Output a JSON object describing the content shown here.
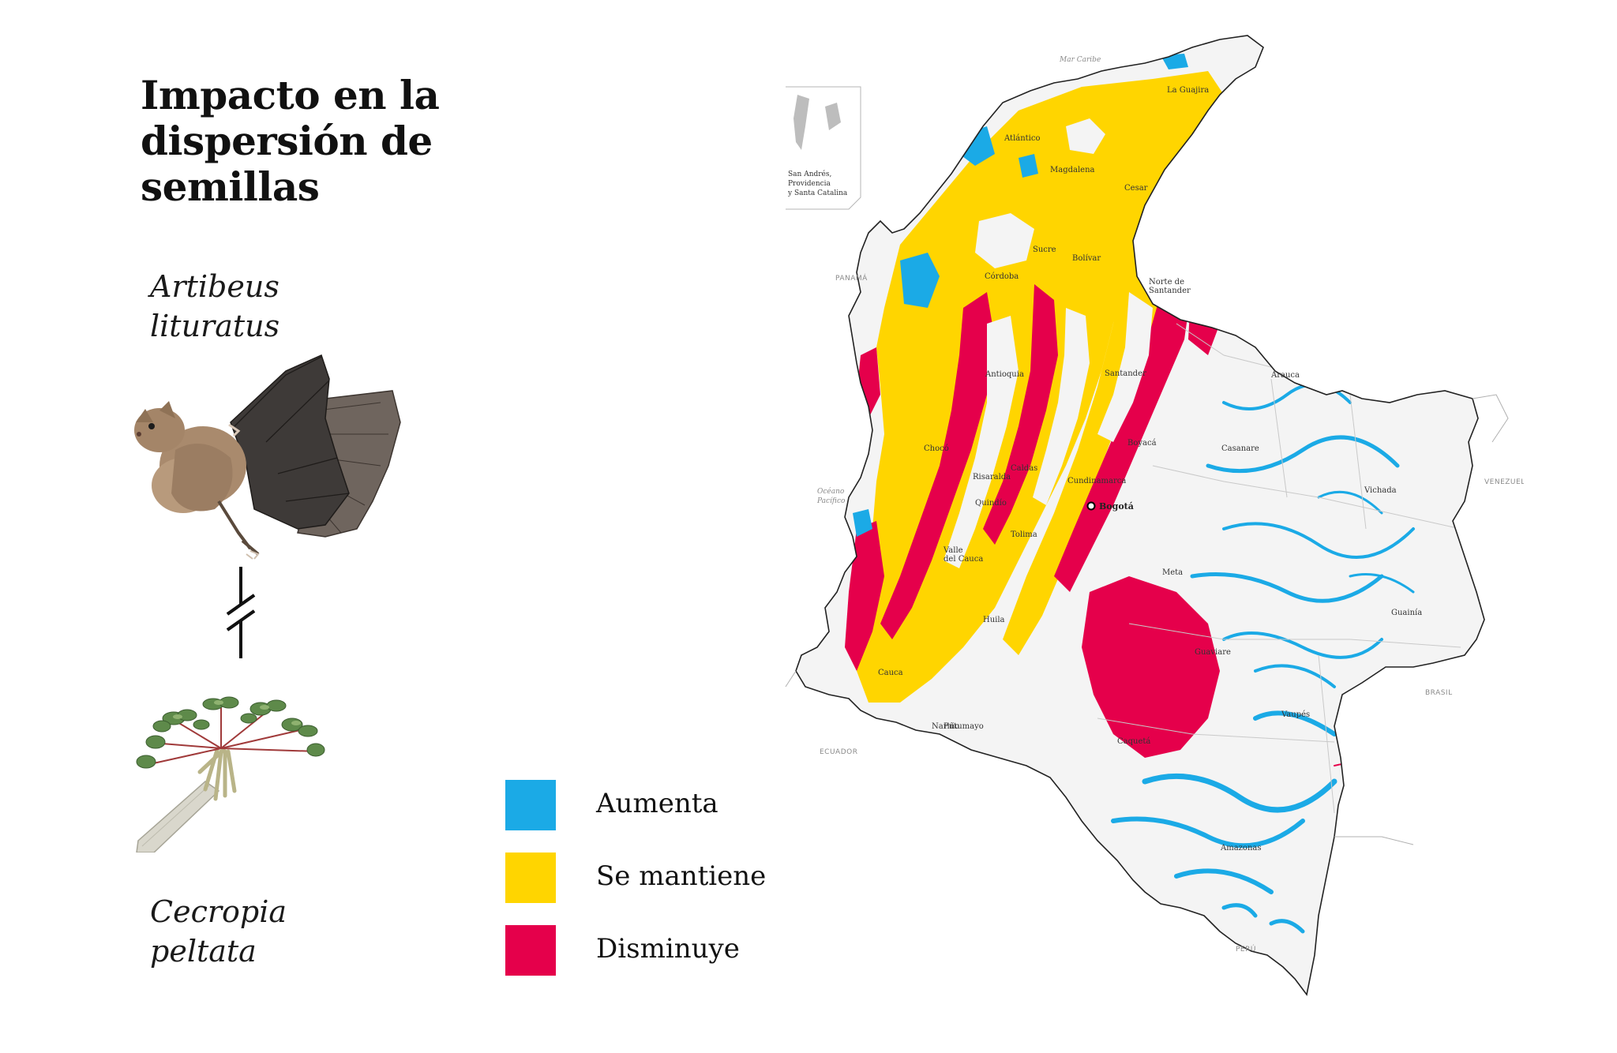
{
  "title": {
    "line1": "Impacto en la",
    "line2": "dispersión de",
    "line3": "semillas"
  },
  "species_a": {
    "line1": "Artibeus",
    "line2": "lituratus"
  },
  "species_b": {
    "line1": "Cecropia",
    "line2": "peltata"
  },
  "legend": {
    "items": [
      {
        "label": "Aumenta",
        "color": "#1BAAE6"
      },
      {
        "label": "Se mantiene",
        "color": "#FFD500"
      },
      {
        "label": "Disminuye",
        "color": "#E5004B"
      }
    ]
  },
  "map": {
    "sea_labels": {
      "caribe": "Mar Caribe",
      "pacifico_1": "Océano",
      "pacifico_2": "Pacífico"
    },
    "countries": {
      "panama": "PANAMÁ",
      "venezuela": "VENEZUELA",
      "ecuador": "ECUADOR",
      "brasil": "BRASIL",
      "peru": "PERÚ"
    },
    "inset": {
      "line1": "San Andrés,",
      "line2": "Providencia",
      "line3": "y Santa Catalina"
    },
    "capital": "Bogotá",
    "departments": {
      "la_guajira": "La Guajira",
      "atlantico": "Atlántico",
      "magdalena": "Magdalena",
      "cesar": "Cesar",
      "sucre": "Sucre",
      "bolivar": "Bolívar",
      "cordoba": "Córdoba",
      "norte_santander_1": "Norte de",
      "norte_santander_2": "Santander",
      "antioquia": "Antioquia",
      "santander": "Santander",
      "arauca": "Arauca",
      "boyaca": "Boyacá",
      "casanare": "Casanare",
      "choco": "Chocó",
      "caldas": "Caldas",
      "cundinamarca": "Cundinamarca",
      "risaralda": "Risaralda",
      "vichada": "Vichada",
      "quindio": "Quindío",
      "tolima": "Tolima",
      "meta": "Meta",
      "valle_1": "Valle",
      "valle_2": "del Cauca",
      "guainia": "Guainía",
      "huila": "Huila",
      "guaviare": "Guaviare",
      "cauca": "Cauca",
      "narino": "Nariño",
      "vaupes": "Vaupés",
      "putumayo": "Putumayo",
      "caqueta": "Caquetá",
      "amazonas": "Amazonas"
    }
  }
}
